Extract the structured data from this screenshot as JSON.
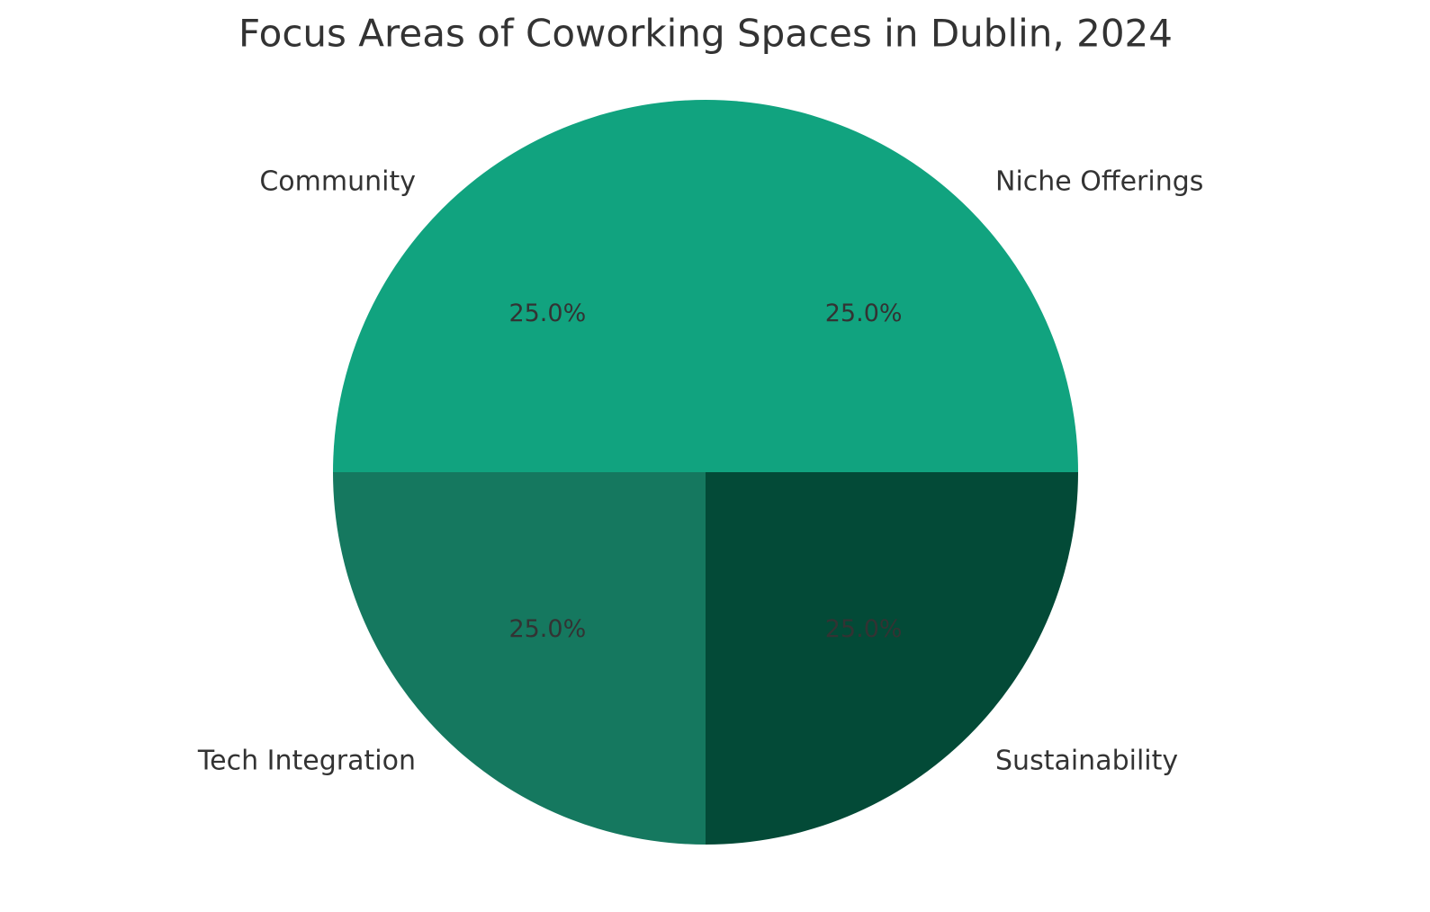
{
  "chart_data": {
    "type": "pie",
    "title": "Focus Areas of Coworking Spaces in Dublin, 2024",
    "categories": [
      "Niche Offerings",
      "Community",
      "Tech Integration",
      "Sustainability"
    ],
    "values": [
      25,
      25,
      25,
      25
    ],
    "value_labels": [
      "25.0%",
      "25.0%",
      "25.0%",
      "25.0%"
    ],
    "colors": [
      "#11a37f",
      "#11a37f",
      "#15785f",
      "#034a37"
    ]
  }
}
